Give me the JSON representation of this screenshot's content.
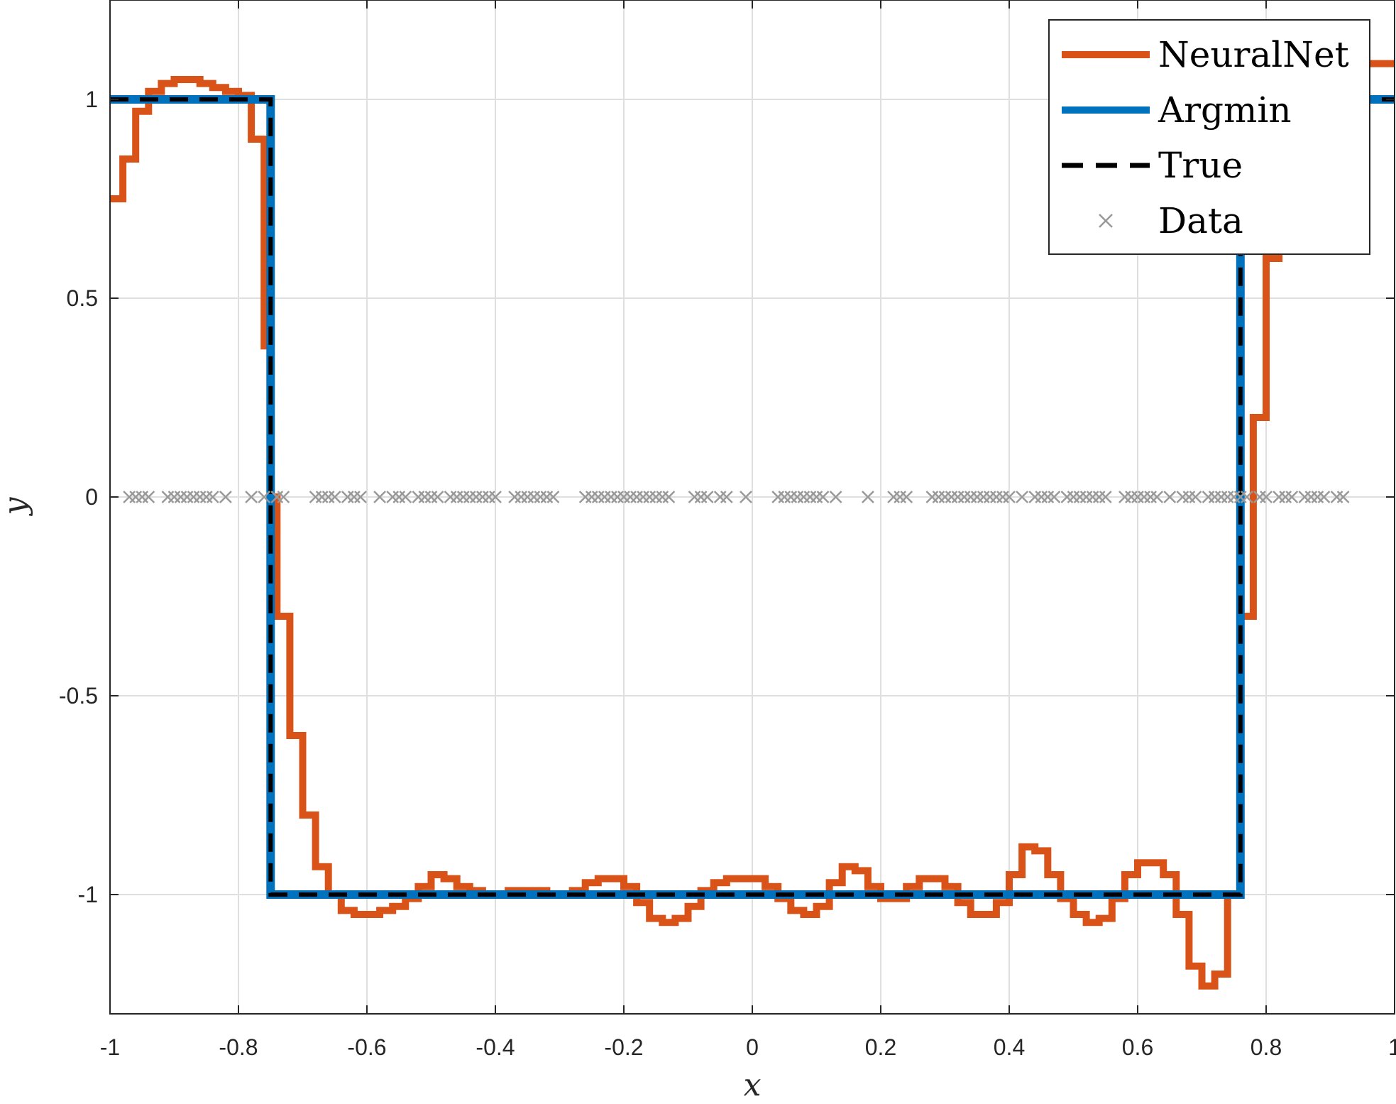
{
  "chart_data": {
    "type": "line",
    "xlabel": "x",
    "ylabel": "y",
    "xlim": [
      -1,
      1
    ],
    "ylim": [
      -1.3,
      1.25
    ],
    "grid": true,
    "box": true,
    "legend_location": "top-right",
    "xticks": [
      -1,
      -0.8,
      -0.6,
      -0.4,
      -0.2,
      0,
      0.2,
      0.4,
      0.6,
      0.8,
      1
    ],
    "xtick_labels": [
      "-1",
      "-0.8",
      "-0.6",
      "-0.4",
      "-0.2",
      "0",
      "0.2",
      "0.4",
      "0.6",
      "0.8",
      "1"
    ],
    "yticks": [
      -1,
      -0.5,
      0,
      0.5,
      1
    ],
    "ytick_labels": [
      "-1",
      "-0.5",
      "0",
      "0.5",
      "1"
    ],
    "series": [
      {
        "name": "NeuralNet",
        "style": "stairs",
        "color": "#D95319",
        "x": [
          -1,
          -0.98,
          -0.96,
          -0.94,
          -0.92,
          -0.9,
          -0.88,
          -0.86,
          -0.84,
          -0.82,
          -0.8,
          -0.78,
          -0.76,
          -0.75,
          -0.74,
          -0.72,
          -0.7,
          -0.68,
          -0.66,
          -0.64,
          -0.62,
          -0.6,
          -0.58,
          -0.56,
          -0.54,
          -0.52,
          -0.5,
          -0.48,
          -0.46,
          -0.44,
          -0.42,
          -0.4,
          -0.38,
          -0.36,
          -0.34,
          -0.32,
          -0.3,
          -0.28,
          -0.26,
          -0.24,
          -0.22,
          -0.2,
          -0.18,
          -0.16,
          -0.14,
          -0.12,
          -0.1,
          -0.08,
          -0.06,
          -0.04,
          -0.02,
          0,
          0.02,
          0.04,
          0.06,
          0.08,
          0.1,
          0.12,
          0.14,
          0.16,
          0.18,
          0.2,
          0.22,
          0.24,
          0.26,
          0.28,
          0.3,
          0.32,
          0.34,
          0.36,
          0.38,
          0.4,
          0.42,
          0.44,
          0.46,
          0.48,
          0.5,
          0.52,
          0.54,
          0.56,
          0.58,
          0.6,
          0.62,
          0.64,
          0.66,
          0.68,
          0.7,
          0.72,
          0.74,
          0.76,
          0.78,
          0.8,
          0.82,
          0.84,
          0.86,
          0.88,
          0.9,
          0.92,
          0.94,
          0.96,
          0.98
        ],
        "y": [
          0.75,
          0.85,
          0.97,
          1.02,
          1.04,
          1.05,
          1.05,
          1.04,
          1.03,
          1.02,
          1.01,
          0.9,
          0.38,
          0.0,
          -0.3,
          -0.6,
          -0.8,
          -0.93,
          -1.0,
          -1.04,
          -1.05,
          -1.05,
          -1.04,
          -1.03,
          -1.01,
          -0.98,
          -0.95,
          -0.96,
          -0.98,
          -0.99,
          -1.0,
          -1.0,
          -0.99,
          -0.99,
          -0.99,
          -1.0,
          -1.0,
          -0.99,
          -0.97,
          -0.96,
          -0.96,
          -0.98,
          -1.02,
          -1.06,
          -1.07,
          -1.06,
          -1.03,
          -0.99,
          -0.97,
          -0.96,
          -0.96,
          -0.96,
          -0.98,
          -1.01,
          -1.04,
          -1.05,
          -1.03,
          -0.97,
          -0.93,
          -0.94,
          -0.98,
          -1.01,
          -1.01,
          -0.98,
          -0.96,
          -0.96,
          -0.98,
          -1.02,
          -1.05,
          -1.05,
          -1.02,
          -0.95,
          -0.88,
          -0.89,
          -0.95,
          -1.01,
          -1.05,
          -1.07,
          -1.06,
          -1.01,
          -0.95,
          -0.92,
          -0.92,
          -0.95,
          -1.05,
          -1.18,
          -1.23,
          -1.2,
          -1.0,
          -0.3,
          0.2,
          0.6,
          0.88,
          1.0,
          1.05,
          1.08,
          1.09,
          1.09,
          1.09,
          1.09,
          1.09
        ]
      },
      {
        "name": "Argmin",
        "style": "step",
        "color": "#0072BD",
        "x": [
          -1,
          -0.75,
          -0.75,
          0.76,
          0.76,
          1
        ],
        "y": [
          1,
          1,
          -1,
          -1,
          1,
          1
        ]
      },
      {
        "name": "True",
        "style": "dashed",
        "color": "#000000",
        "x": [
          -1,
          -0.75,
          -0.75,
          0.76,
          0.76,
          1
        ],
        "y": [
          1,
          1,
          -1,
          -1,
          1,
          1
        ]
      },
      {
        "name": "Data",
        "style": "markers",
        "color": "#999999",
        "x": [
          -0.97,
          -0.96,
          -0.95,
          -0.94,
          -0.91,
          -0.9,
          -0.89,
          -0.88,
          -0.87,
          -0.86,
          -0.85,
          -0.84,
          -0.82,
          -0.78,
          -0.76,
          -0.74,
          -0.73,
          -0.68,
          -0.67,
          -0.66,
          -0.65,
          -0.63,
          -0.62,
          -0.61,
          -0.58,
          -0.56,
          -0.55,
          -0.54,
          -0.52,
          -0.51,
          -0.5,
          -0.49,
          -0.47,
          -0.46,
          -0.45,
          -0.44,
          -0.43,
          -0.42,
          -0.41,
          -0.4,
          -0.37,
          -0.36,
          -0.35,
          -0.34,
          -0.33,
          -0.32,
          -0.31,
          -0.26,
          -0.25,
          -0.24,
          -0.23,
          -0.22,
          -0.21,
          -0.2,
          -0.19,
          -0.18,
          -0.17,
          -0.16,
          -0.15,
          -0.14,
          -0.13,
          -0.09,
          -0.08,
          -0.07,
          -0.05,
          -0.04,
          -0.01,
          0.04,
          0.05,
          0.06,
          0.07,
          0.08,
          0.09,
          0.1,
          0.11,
          0.13,
          0.18,
          0.22,
          0.23,
          0.24,
          0.28,
          0.29,
          0.3,
          0.31,
          0.32,
          0.33,
          0.34,
          0.35,
          0.36,
          0.37,
          0.38,
          0.39,
          0.4,
          0.42,
          0.44,
          0.45,
          0.46,
          0.47,
          0.49,
          0.5,
          0.51,
          0.52,
          0.53,
          0.54,
          0.55,
          0.58,
          0.59,
          0.6,
          0.61,
          0.62,
          0.63,
          0.65,
          0.67,
          0.68,
          0.69,
          0.71,
          0.72,
          0.73,
          0.74,
          0.75,
          0.76,
          0.77,
          0.79,
          0.8,
          0.82,
          0.83,
          0.84,
          0.86,
          0.87,
          0.88,
          0.89,
          0.91,
          0.92
        ],
        "y": [
          0,
          0,
          0,
          0,
          0,
          0,
          0,
          0,
          0,
          0,
          0,
          0,
          0,
          0,
          0,
          0,
          0,
          0,
          0,
          0,
          0,
          0,
          0,
          0,
          0,
          0,
          0,
          0,
          0,
          0,
          0,
          0,
          0,
          0,
          0,
          0,
          0,
          0,
          0,
          0,
          0,
          0,
          0,
          0,
          0,
          0,
          0,
          0,
          0,
          0,
          0,
          0,
          0,
          0,
          0,
          0,
          0,
          0,
          0,
          0,
          0,
          0,
          0,
          0,
          0,
          0,
          0,
          0,
          0,
          0,
          0,
          0,
          0,
          0,
          0,
          0,
          0,
          0,
          0,
          0,
          0,
          0,
          0,
          0,
          0,
          0,
          0,
          0,
          0,
          0,
          0,
          0,
          0,
          0,
          0,
          0,
          0,
          0,
          0,
          0,
          0,
          0,
          0,
          0,
          0,
          0,
          0,
          0,
          0,
          0,
          0,
          0,
          0,
          0,
          0,
          0,
          0,
          0,
          0,
          0,
          0,
          0,
          0,
          0,
          0,
          0,
          0,
          0,
          0,
          0,
          0,
          0,
          0
        ]
      }
    ]
  }
}
